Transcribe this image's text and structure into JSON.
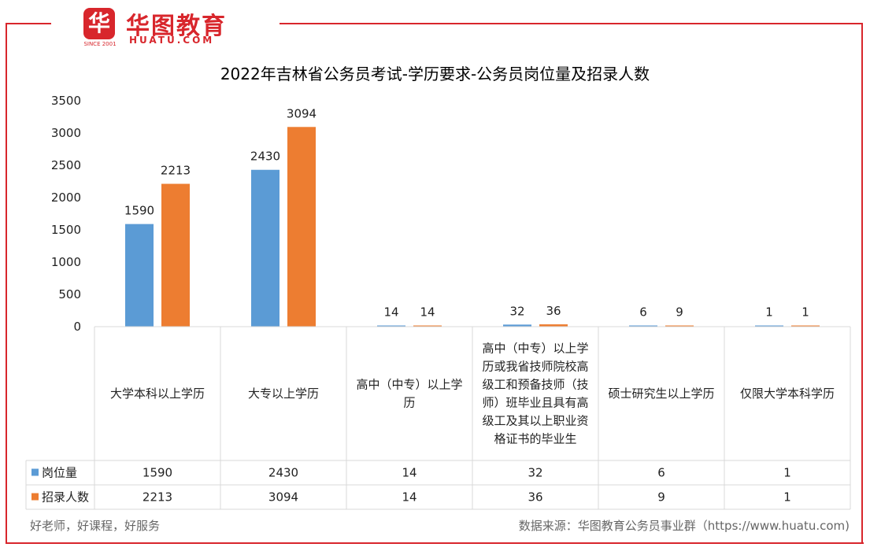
{
  "logo": {
    "badge": "华",
    "name_cn": "华图教育",
    "name_en": "HUATU.COM",
    "since": "SINCE 2001"
  },
  "colors": {
    "frame": "#d8262c",
    "series1": "#5b9bd5",
    "series2": "#ed7d31",
    "grid": "#d9d9d9"
  },
  "chart_data": {
    "type": "bar",
    "title": "2022年吉林省公务员考试-学历要求-公务员岗位量及招录人数",
    "categories": [
      "大学本科以上学历",
      "大专以上学历",
      "高中（中专）以上学历",
      "高中（中专）以上学历或我省技师院校高级工和预备技师（技师）班毕业且具有高级工及其以上职业资格证书的毕业生",
      "硕士研究生以上学历",
      "仅限大学本科学历"
    ],
    "category_lines": [
      [
        "大学本科以上学历"
      ],
      [
        "大专以上学历"
      ],
      [
        "高中（中专）以上学",
        "历"
      ],
      [
        "高中（中专）以上学",
        "历或我省技师院校高",
        "级工和预备技师（技",
        "师）班毕业且具有高",
        "级工及其以上职业资",
        "格证书的毕业生"
      ],
      [
        "硕士研究生以上学历"
      ],
      [
        "仅限大学本科学历"
      ]
    ],
    "series": [
      {
        "name": "岗位量",
        "values": [
          1590,
          2430,
          14,
          32,
          6,
          1
        ]
      },
      {
        "name": "招录人数",
        "values": [
          2213,
          3094,
          14,
          36,
          9,
          1
        ]
      }
    ],
    "ylim": [
      0,
      3500
    ],
    "yticks": [
      "0",
      "500",
      "1000",
      "1500",
      "2000",
      "2500",
      "3000",
      "3500"
    ],
    "data_table": true,
    "grid": false
  },
  "footer": {
    "left": "好老师，好课程，好服务",
    "right": "数据来源：华图教育公务员事业群（https://www.huatu.com)"
  }
}
